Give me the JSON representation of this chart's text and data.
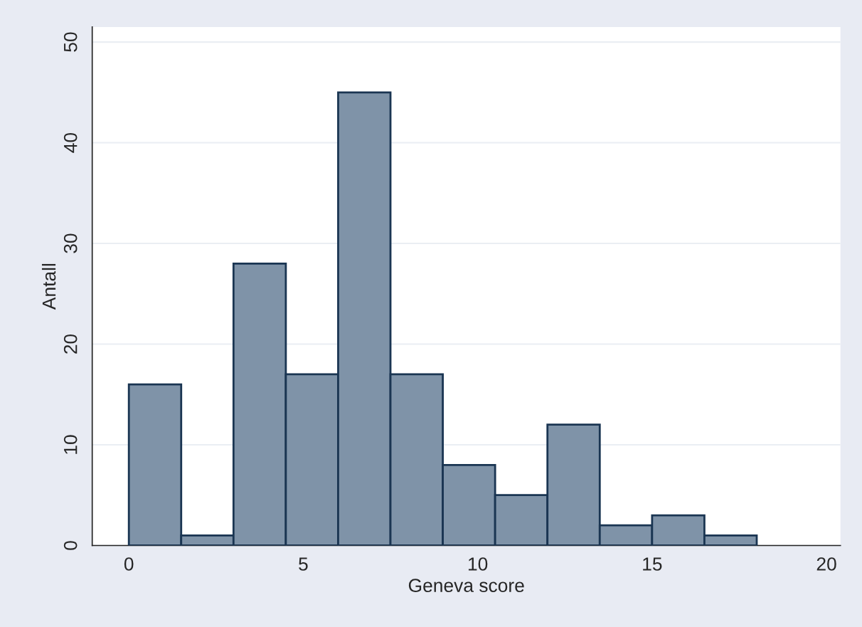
{
  "chart_data": {
    "type": "histogram",
    "xlabel": "Geneva score",
    "ylabel": "Antall",
    "bins": [
      0,
      1.5,
      3,
      4.5,
      6,
      7.5,
      9,
      10.5,
      12,
      13.5,
      15,
      16.5,
      18
    ],
    "values": [
      16,
      1,
      28,
      17,
      45,
      17,
      8,
      5,
      12,
      2,
      3,
      1
    ],
    "color": "#7f93a8",
    "xlim": [
      -1.05,
      20.4
    ],
    "xticks": [
      0,
      5,
      10,
      15,
      20
    ],
    "ylim": [
      0,
      51.5
    ],
    "yticks": [
      0,
      10,
      20,
      30,
      40,
      50
    ],
    "grid": "y"
  }
}
